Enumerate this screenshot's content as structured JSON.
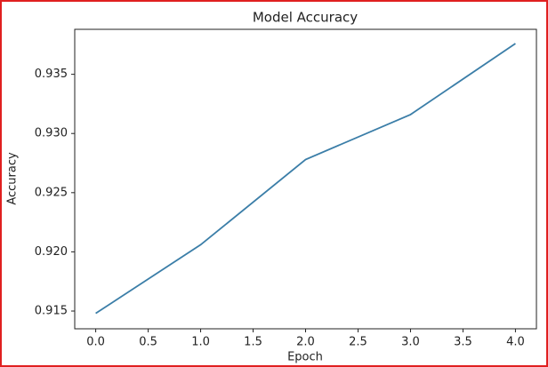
{
  "chart_data": {
    "type": "line",
    "title": "Model Accuracy",
    "x_label": "Epoch",
    "y_label": "Accuracy",
    "x": [
      0,
      1,
      2,
      3,
      4
    ],
    "series": [
      {
        "color": "#3b7ea8",
        "values": [
          0.9148,
          0.9206,
          0.9278,
          0.9316,
          0.9376
        ]
      }
    ],
    "xlim": [
      -0.2,
      4.2
    ],
    "xticks": [
      {
        "value": 0,
        "label": "0.0"
      },
      {
        "value": 0.5,
        "label": "0.5"
      },
      {
        "value": 1,
        "label": "1.0"
      },
      {
        "value": 1.5,
        "label": "1.5"
      },
      {
        "value": 2,
        "label": "2.0"
      },
      {
        "value": 2.5,
        "label": "2.5"
      },
      {
        "value": 3,
        "label": "3.0"
      },
      {
        "value": 3.5,
        "label": "3.5"
      },
      {
        "value": 4,
        "label": "4.0"
      }
    ],
    "ylim": [
      0.9135,
      0.9388
    ],
    "yticks": [
      0.915,
      {
        "value": 0.92,
        "label": "0.920"
      },
      0.925,
      {
        "value": 0.93,
        "label": "0.930"
      },
      0.935
    ],
    "grid": false
  }
}
